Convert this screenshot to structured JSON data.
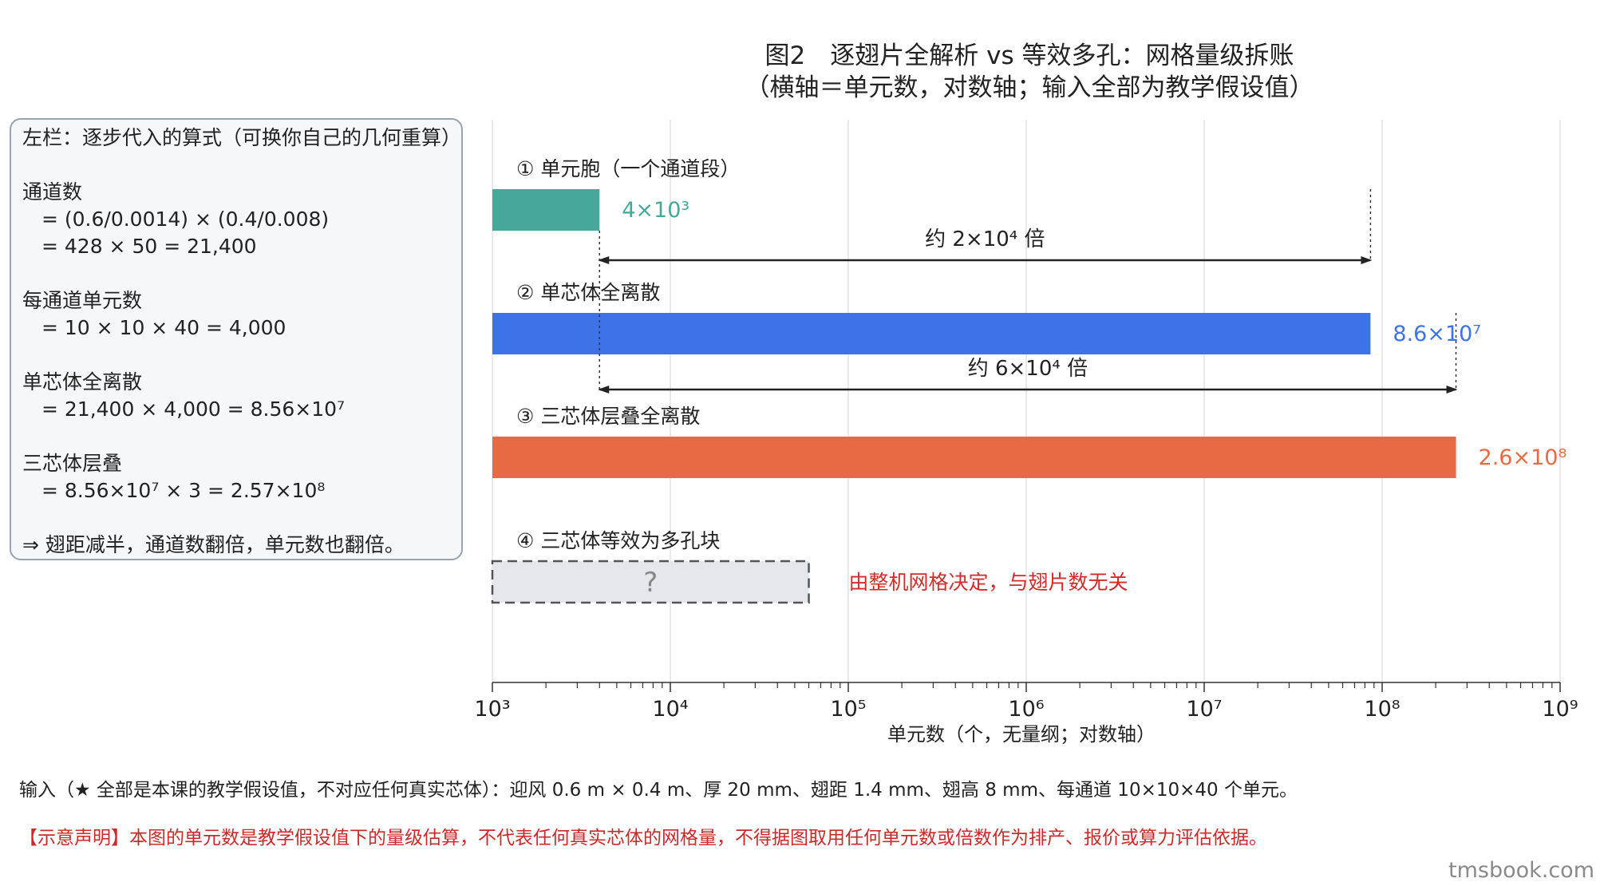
{
  "title": {
    "line1": "图2　逐翅片全解析 vs 等效多孔：网格量级拆账",
    "line2": "（横轴＝单元数，对数轴；输入全部为教学假设值）"
  },
  "left_panel": {
    "lines": [
      "左栏：逐步代入的算式（可换你自己的几何重算）",
      "",
      "通道数",
      "= (0.6/0.0014) × (0.4/0.008)",
      "= 428 × 50 = 21,400",
      "",
      "每通道单元数",
      "= 10 × 10 × 40 = 4,000",
      "",
      "单芯体全离散",
      "= 21,400 × 4,000 = 8.56×10⁷",
      "",
      "三芯体层叠",
      "= 8.56×10⁷ × 3 = 2.57×10⁸",
      "",
      "⇒ 翅距减半，通道数翻倍，单元数也翻倍。"
    ]
  },
  "chart_data": {
    "type": "bar",
    "orientation": "horizontal",
    "x_scale": "log",
    "xlim": [
      1000,
      1000000000
    ],
    "xlabel": "单元数（个，无量纲；对数轴）",
    "x_ticks": [
      {
        "value": 1000,
        "label": "10³"
      },
      {
        "value": 10000,
        "label": "10⁴"
      },
      {
        "value": 100000,
        "label": "10⁵"
      },
      {
        "value": 1000000,
        "label": "10⁶"
      },
      {
        "value": 10000000,
        "label": "10⁷"
      },
      {
        "value": 100000000,
        "label": "10⁸"
      },
      {
        "value": 1000000000,
        "label": "10⁹"
      }
    ],
    "grid": true,
    "bars": [
      {
        "label": "① 单元胞（一个通道段）",
        "value": 4000,
        "value_label": "4×10³",
        "color": "#46a89a",
        "style": "solid"
      },
      {
        "label": "② 单芯体全离散",
        "value": 86000000,
        "value_label": "8.6×10⁷",
        "color": "#3d73e6",
        "style": "solid"
      },
      {
        "label": "③ 三芯体层叠全离散",
        "value": 260000000,
        "value_label": "2.6×10⁸",
        "color": "#e76a45",
        "style": "solid"
      },
      {
        "label": "④ 三芯体等效为多孔块",
        "value": 60000,
        "value_label": "?",
        "color": "#e6e7ea",
        "style": "dashed",
        "note": "由整机网格决定，与翅片数无关",
        "note_color": "#d42a2a"
      }
    ],
    "annotations": [
      {
        "text": "约 2×10⁴ 倍",
        "from": 4000,
        "to": 86000000
      },
      {
        "text": "约 6×10⁴ 倍",
        "from": 4000,
        "to": 260000000
      }
    ]
  },
  "inputs_note": "输入（★ 全部是本课的教学假设值，不对应任何真实芯体）：迎风 0.6 m × 0.4 m、厚 20 mm、翅距 1.4 mm、翅高 8 mm、每通道 10×10×40 个单元。",
  "disclaimer": "【示意声明】本图的单元数是教学假设值下的量级估算，不代表任何真实芯体的网格量，不得据图取用任何单元数或倍数作为排产、报价或算力评估依据。",
  "watermark": "tmsbook.com"
}
